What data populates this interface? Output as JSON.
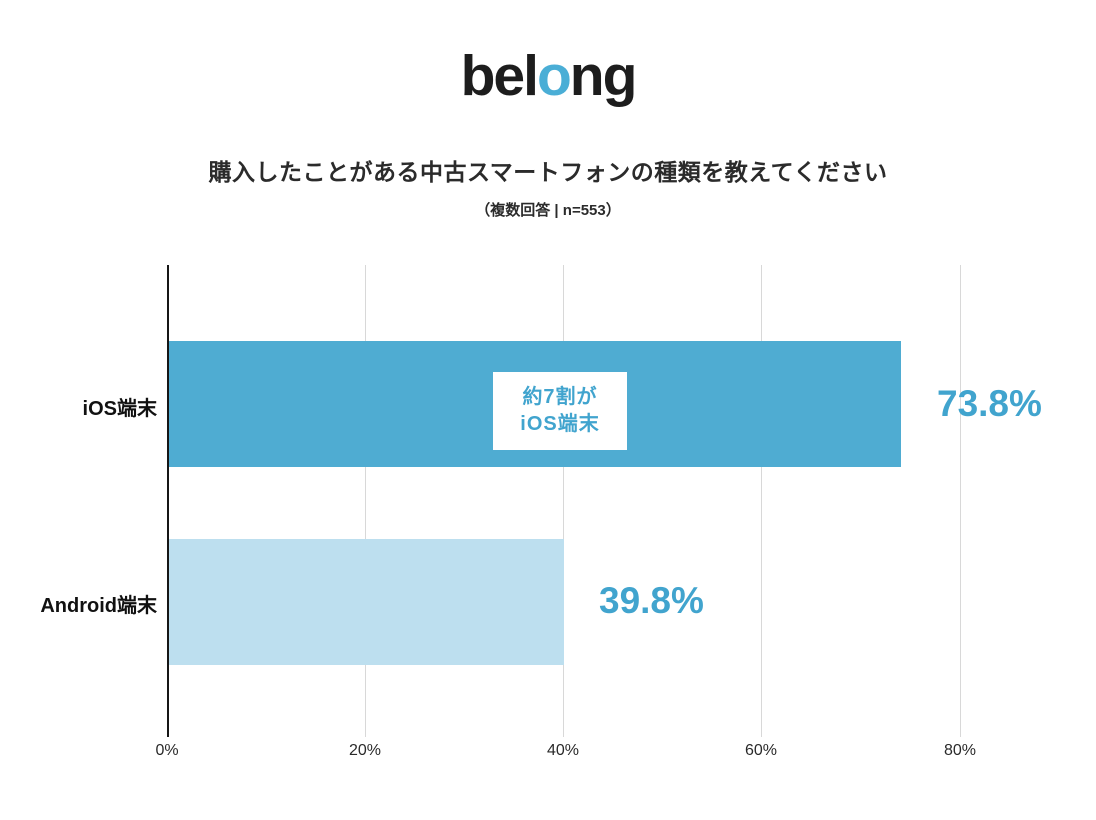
{
  "logo": {
    "prefix": "bel",
    "o": "o",
    "suffix": "ng"
  },
  "header": {
    "title": "購入したことがある中古スマートフォンの種類を教えてください",
    "subtitle": "（複数回答 | n=553）"
  },
  "chart_data": {
    "type": "bar",
    "orientation": "horizontal",
    "title": "購入したことがある中古スマートフォンの種類を教えてください",
    "subtitle": "（複数回答 | n=553）",
    "categories": [
      "iOS端末",
      "Android端末"
    ],
    "values": [
      73.8,
      39.8
    ],
    "value_labels": [
      "73.8%",
      "39.8%"
    ],
    "series_colors": [
      "#4facd2",
      "#bddfef"
    ],
    "value_label_color": "#41a4ce",
    "logo_accent_color": "#4aaed6",
    "xlim": [
      0,
      80
    ],
    "x_ticks": [
      "0%",
      "20%",
      "40%",
      "60%",
      "80%"
    ],
    "grid": "vertical-on",
    "legend": "none",
    "annotation": {
      "line1": "約7割が",
      "line2": "iOS端末"
    }
  }
}
